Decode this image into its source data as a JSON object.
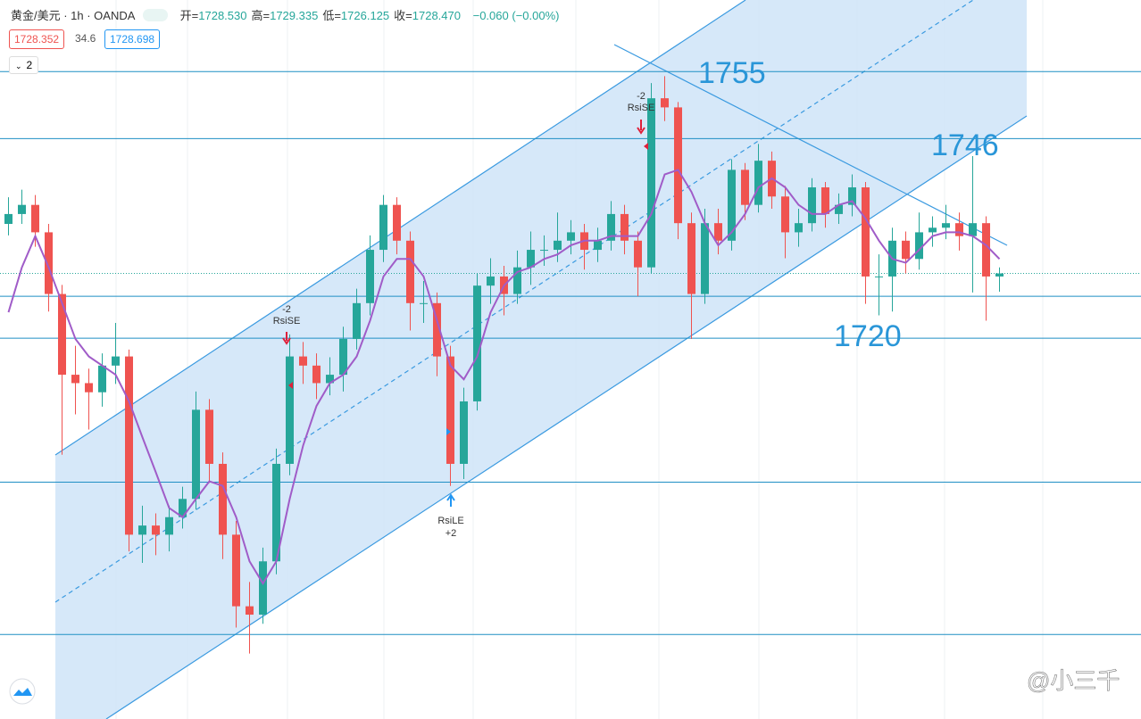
{
  "header": {
    "symbol": "黄金/美元 · 1h · OANDA",
    "ohlc": [
      {
        "label": "开=",
        "value": "1728.530"
      },
      {
        "label": "高=",
        "value": "1729.335"
      },
      {
        "label": "低=",
        "value": "1726.125"
      },
      {
        "label": "收=",
        "value": "1728.470"
      }
    ],
    "change": "−0.060 (−0.00%)",
    "badges": [
      "1728.352",
      "34.6",
      "1728.698"
    ],
    "study_count": "2"
  },
  "watermark": "@小三千",
  "chart_data": {
    "type": "candlestick",
    "ylim": [
      1670,
      1764.4
    ],
    "up_color": "#26a69a",
    "down_color": "#ef5350",
    "open": [
      1735.0,
      1736.3,
      1737.5,
      1733.9,
      1725.8,
      1715.2,
      1714.1,
      1712.9,
      1716.4,
      1717.6,
      1694.2,
      1695.4,
      1694.2,
      1696.5,
      1698.9,
      1710.6,
      1703.5,
      1694.2,
      1684.8,
      1683.7,
      1690.7,
      1703.5,
      1717.6,
      1716.4,
      1714.1,
      1715.2,
      1719.9,
      1724.6,
      1731.6,
      1737.5,
      1732.8,
      1724.6,
      1724.6,
      1717.6,
      1703.5,
      1711.7,
      1726.9,
      1728.1,
      1725.8,
      1729.3,
      1731.6,
      1731.6,
      1732.8,
      1733.9,
      1731.6,
      1732.8,
      1736.3,
      1732.8,
      1729.3,
      1751.5,
      1750.3,
      1735.1,
      1725.8,
      1735.1,
      1732.8,
      1742.1,
      1737.5,
      1743.3,
      1738.6,
      1733.9,
      1735.1,
      1739.8,
      1736.3,
      1737.5,
      1739.8,
      1728.1,
      1728.1,
      1732.8,
      1730.4,
      1733.9,
      1734.5,
      1735.1,
      1733.4,
      1735.1,
      1728.1
    ],
    "high": [
      1738.5,
      1739.5,
      1738.8,
      1735.0,
      1727.0,
      1719.0,
      1716.0,
      1718.0,
      1722.0,
      1718.5,
      1698.0,
      1697.0,
      1698.0,
      1700.5,
      1713.0,
      1712.0,
      1705.0,
      1696.0,
      1688.0,
      1692.5,
      1705.5,
      1720.5,
      1719.5,
      1718.0,
      1717.5,
      1721.5,
      1726.5,
      1733.5,
      1738.8,
      1738.5,
      1734.0,
      1727.5,
      1726.0,
      1719.0,
      1713.5,
      1728.5,
      1730.5,
      1729.5,
      1731.5,
      1734.0,
      1733.5,
      1736.5,
      1735.5,
      1735.0,
      1734.5,
      1738.0,
      1737.5,
      1734.0,
      1753.5,
      1754.4,
      1751.0,
      1736.5,
      1737.0,
      1737.0,
      1743.5,
      1743.0,
      1745.5,
      1744.5,
      1740.0,
      1737.0,
      1741.0,
      1740.5,
      1739.0,
      1741.5,
      1740.5,
      1731.0,
      1734.5,
      1734.0,
      1736.5,
      1736.0,
      1737.5,
      1736.5,
      1743.9,
      1736.0,
      1729.3
    ],
    "low": [
      1733.5,
      1735.0,
      1732.0,
      1723.5,
      1704.7,
      1710.0,
      1708.0,
      1711.0,
      1714.0,
      1692.0,
      1690.5,
      1691.5,
      1692.0,
      1695.0,
      1697.5,
      1701.0,
      1691.0,
      1682.0,
      1678.6,
      1682.5,
      1689.0,
      1702.0,
      1714.0,
      1712.0,
      1712.5,
      1713.0,
      1718.5,
      1723.0,
      1730.0,
      1731.0,
      1721.0,
      1722.0,
      1715.0,
      1700.6,
      1701.5,
      1710.5,
      1724.5,
      1723.0,
      1724.5,
      1727.0,
      1729.5,
      1730.0,
      1731.0,
      1729.0,
      1730.0,
      1731.5,
      1731.0,
      1725.5,
      1728.5,
      1748.5,
      1733.0,
      1719.9,
      1724.5,
      1731.0,
      1731.5,
      1735.5,
      1736.5,
      1737.0,
      1730.5,
      1732.0,
      1734.0,
      1734.5,
      1735.0,
      1736.0,
      1724.5,
      1723.0,
      1723.5,
      1728.5,
      1729.0,
      1732.0,
      1733.0,
      1731.5,
      1726.0,
      1722.3,
      1726.1
    ],
    "close": [
      1736.3,
      1737.5,
      1733.9,
      1725.8,
      1715.2,
      1714.1,
      1712.9,
      1716.4,
      1717.6,
      1694.2,
      1695.4,
      1694.2,
      1696.5,
      1698.9,
      1710.6,
      1703.5,
      1694.2,
      1684.8,
      1683.7,
      1690.7,
      1703.5,
      1717.6,
      1716.4,
      1714.1,
      1715.2,
      1719.9,
      1724.6,
      1731.6,
      1737.5,
      1732.8,
      1724.6,
      1724.6,
      1717.6,
      1703.5,
      1711.7,
      1726.9,
      1728.1,
      1725.8,
      1729.3,
      1731.6,
      1731.6,
      1732.8,
      1733.9,
      1731.6,
      1732.8,
      1736.3,
      1732.8,
      1729.3,
      1751.5,
      1750.3,
      1735.1,
      1725.8,
      1735.1,
      1732.8,
      1742.1,
      1737.5,
      1743.3,
      1738.6,
      1733.9,
      1735.1,
      1739.8,
      1736.3,
      1737.5,
      1739.8,
      1728.1,
      1728.1,
      1732.8,
      1730.4,
      1733.9,
      1734.5,
      1735.1,
      1733.4,
      1735.1,
      1728.1,
      1728.5
    ],
    "ma": {
      "color": "#a05cc8",
      "values": [
        1723.4,
        1729.3,
        1733.4,
        1729.3,
        1724.6,
        1719.9,
        1717.6,
        1716.4,
        1715.2,
        1711.7,
        1707.0,
        1702.4,
        1697.7,
        1696.5,
        1698.9,
        1701.2,
        1700.6,
        1696.5,
        1690.7,
        1687.8,
        1690.7,
        1698.9,
        1705.9,
        1711.1,
        1714.1,
        1715.2,
        1717.6,
        1722.3,
        1728.1,
        1730.4,
        1730.4,
        1728.1,
        1722.3,
        1716.4,
        1714.6,
        1717.6,
        1723.4,
        1726.9,
        1728.7,
        1729.3,
        1730.4,
        1731.0,
        1732.2,
        1732.8,
        1732.8,
        1733.4,
        1733.4,
        1733.4,
        1736.3,
        1741.5,
        1742.1,
        1739.2,
        1735.1,
        1732.2,
        1733.9,
        1736.3,
        1739.8,
        1741.0,
        1739.8,
        1737.5,
        1736.3,
        1736.3,
        1737.5,
        1738.0,
        1735.7,
        1732.8,
        1730.4,
        1729.9,
        1731.6,
        1733.4,
        1733.9,
        1733.9,
        1733.4,
        1732.2,
        1730.4
      ]
    },
    "levels": {
      "color": "#1f8fc4",
      "values": [
        1755,
        1746.2,
        1725.5,
        1720,
        1701.1,
        1681.1
      ]
    },
    "price_line": 1728.5,
    "annotations": [
      "1755",
      "1746",
      "1720"
    ],
    "signals": [
      {
        "qty": "-2",
        "name": "RsiSE"
      },
      {
        "qty": "-2",
        "name": "RsiSE"
      },
      {
        "qty": "+2",
        "name": "RsiLE"
      }
    ]
  }
}
